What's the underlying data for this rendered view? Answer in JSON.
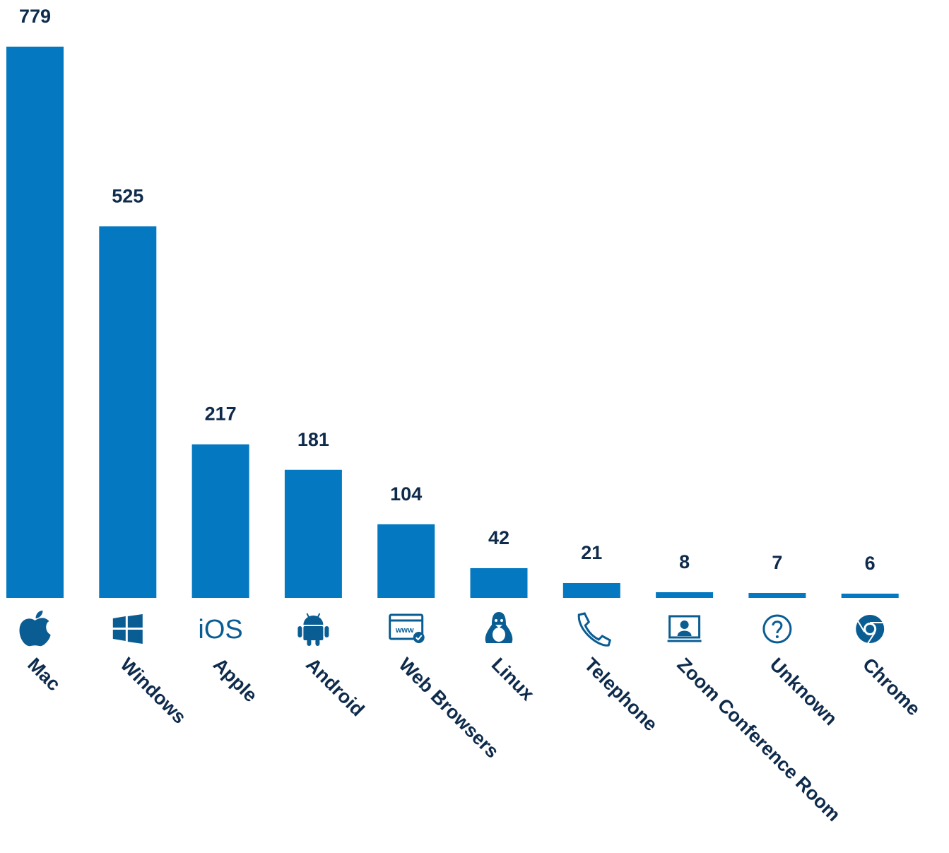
{
  "chart_data": {
    "type": "bar",
    "categories": [
      "Mac",
      "Windows",
      "Apple",
      "Android",
      "Web Browsers",
      "Linux",
      "Telephone",
      "Zoom Conference Room",
      "Unknown",
      "Chrome"
    ],
    "values": [
      779,
      525,
      217,
      181,
      104,
      42,
      21,
      8,
      7,
      6
    ],
    "color": "#0478c0",
    "icon_text": {
      "ios": "iOS",
      "web": "www"
    }
  }
}
